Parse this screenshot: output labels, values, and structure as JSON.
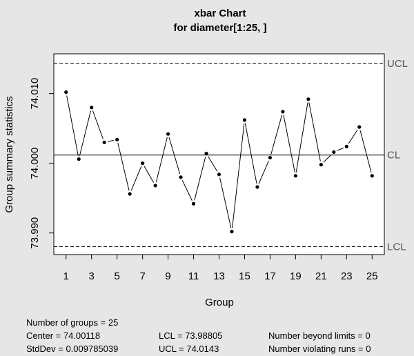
{
  "chart_data": {
    "type": "line",
    "title": "xbar Chart",
    "subtitle": "for diameter[1:25, ]",
    "xlabel": "Group",
    "ylabel": "Group summary statistics",
    "x": [
      1,
      2,
      3,
      4,
      5,
      6,
      7,
      8,
      9,
      10,
      11,
      12,
      13,
      14,
      15,
      16,
      17,
      18,
      19,
      20,
      21,
      22,
      23,
      24,
      25
    ],
    "values": [
      74.0102,
      74.0006,
      74.008,
      74.003,
      74.0034,
      73.9956,
      74.0,
      73.9968,
      74.0042,
      73.998,
      73.9942,
      74.0014,
      73.9984,
      73.9902,
      74.0062,
      73.9966,
      74.0008,
      74.0074,
      73.9982,
      74.0092,
      73.9998,
      74.0016,
      74.0024,
      74.0052,
      73.9982
    ],
    "xticks": [
      "1",
      "3",
      "5",
      "7",
      "9",
      "11",
      "13",
      "15",
      "17",
      "19",
      "21",
      "23",
      "25"
    ],
    "yticks": [
      "73.990",
      "74.000",
      "74.010"
    ],
    "ylim": [
      73.9869,
      74.0157
    ],
    "xlim": [
      0.04,
      25.96
    ],
    "limits": [
      {
        "label": "UCL",
        "value": 74.0143,
        "style": "dashed"
      },
      {
        "label": "CL",
        "value": 74.00118,
        "style": "solid"
      },
      {
        "label": "LCL",
        "value": 73.98805,
        "style": "dashed"
      }
    ],
    "grid": false,
    "colors": {
      "background": "#e6e6e6",
      "plot_area": "#ffffff",
      "line": "#000000",
      "limit_label": "#555555"
    }
  },
  "stats": {
    "groups": "Number of groups = 25",
    "center": "Center = 74.00118",
    "stddev": "StdDev = 0.009785039",
    "lcl": "LCL = 73.98805",
    "ucl": "UCL = 74.0143",
    "beyond": "Number beyond limits = 0",
    "runs": "Number violating runs = 0"
  }
}
